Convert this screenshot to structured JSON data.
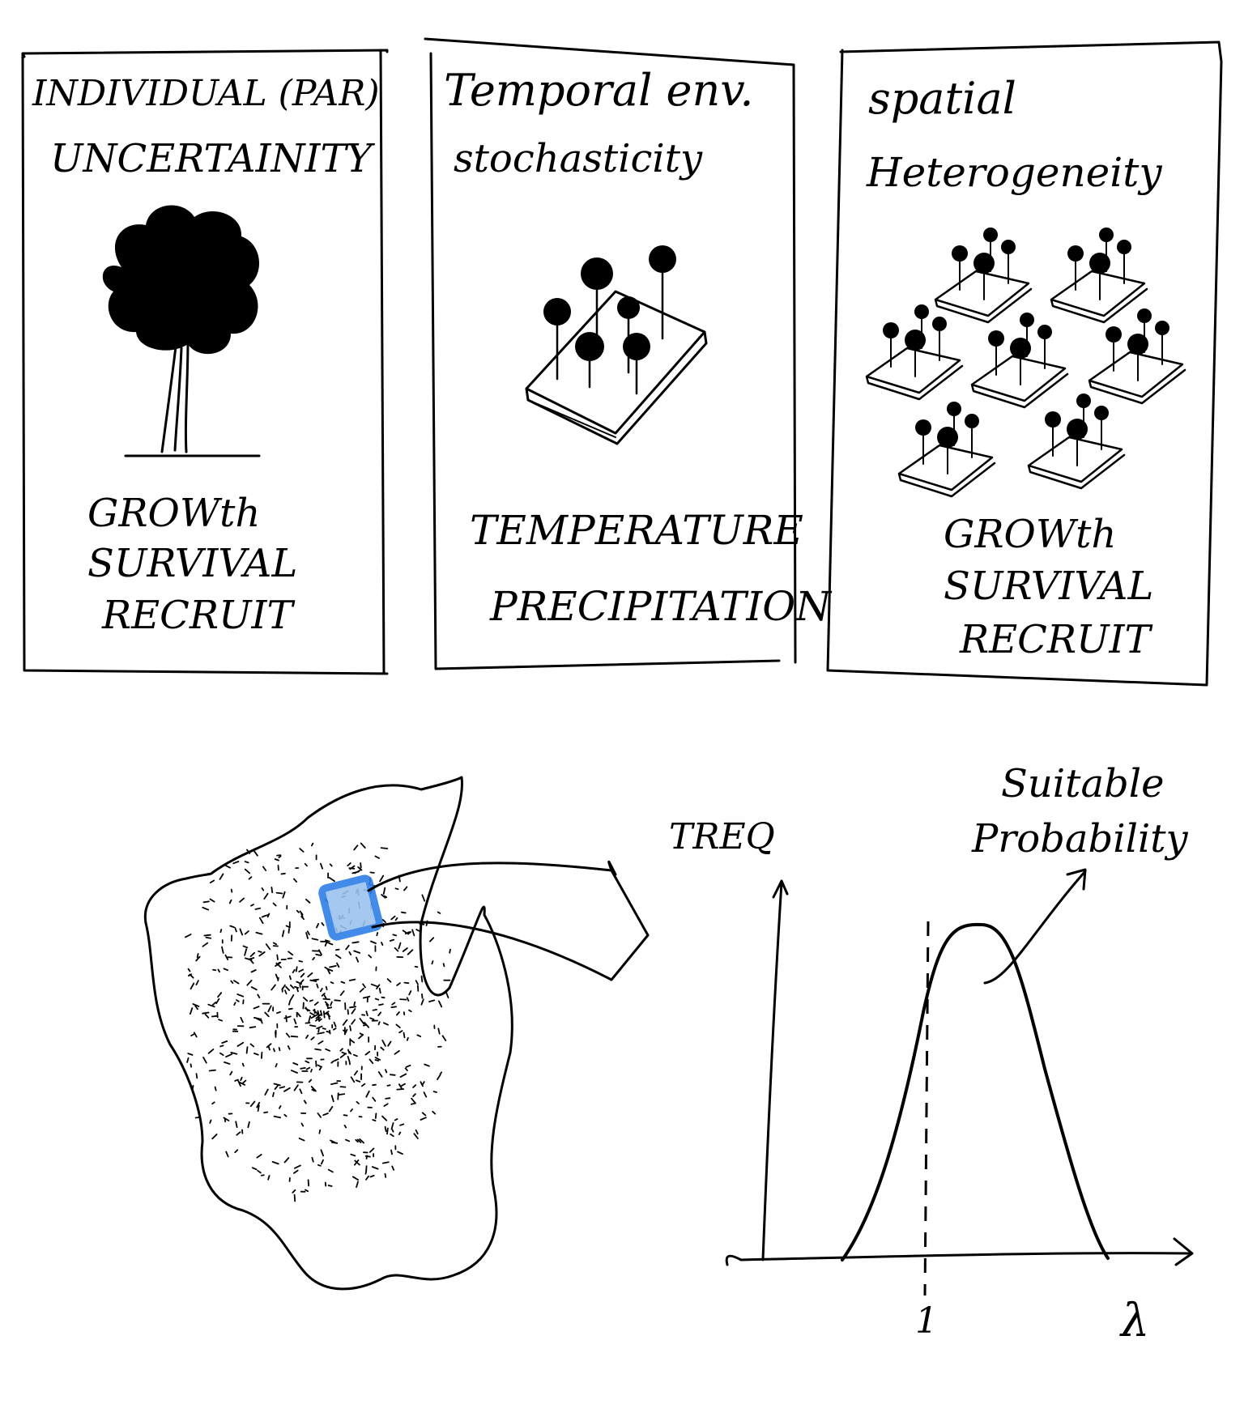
{
  "panels": [
    {
      "title_line1": "INDIVIDUAL (PAR)",
      "title_line2": "UNCERTAINITY",
      "items": [
        "GROWth",
        "SURVIVAL",
        "RECRUIT"
      ]
    },
    {
      "title_line1": "Temporal env.",
      "title_line2": "stochasticity",
      "items": [
        "TEMPERATURE",
        "PRECIPITATION"
      ]
    },
    {
      "title_line1": "spatial",
      "title_line2": "Heterogeneity",
      "items": [
        "GROWth",
        "SURVIVAL",
        "RECRUIT"
      ]
    }
  ],
  "bottom": {
    "y_label": "TREQ",
    "x_label": "λ",
    "x_tick": "1",
    "annotation_line1": "Suitable",
    "annotation_line2": "Probability",
    "highlight_color": "#2f7fe6",
    "highlight_fill": "#9cc3f0"
  }
}
